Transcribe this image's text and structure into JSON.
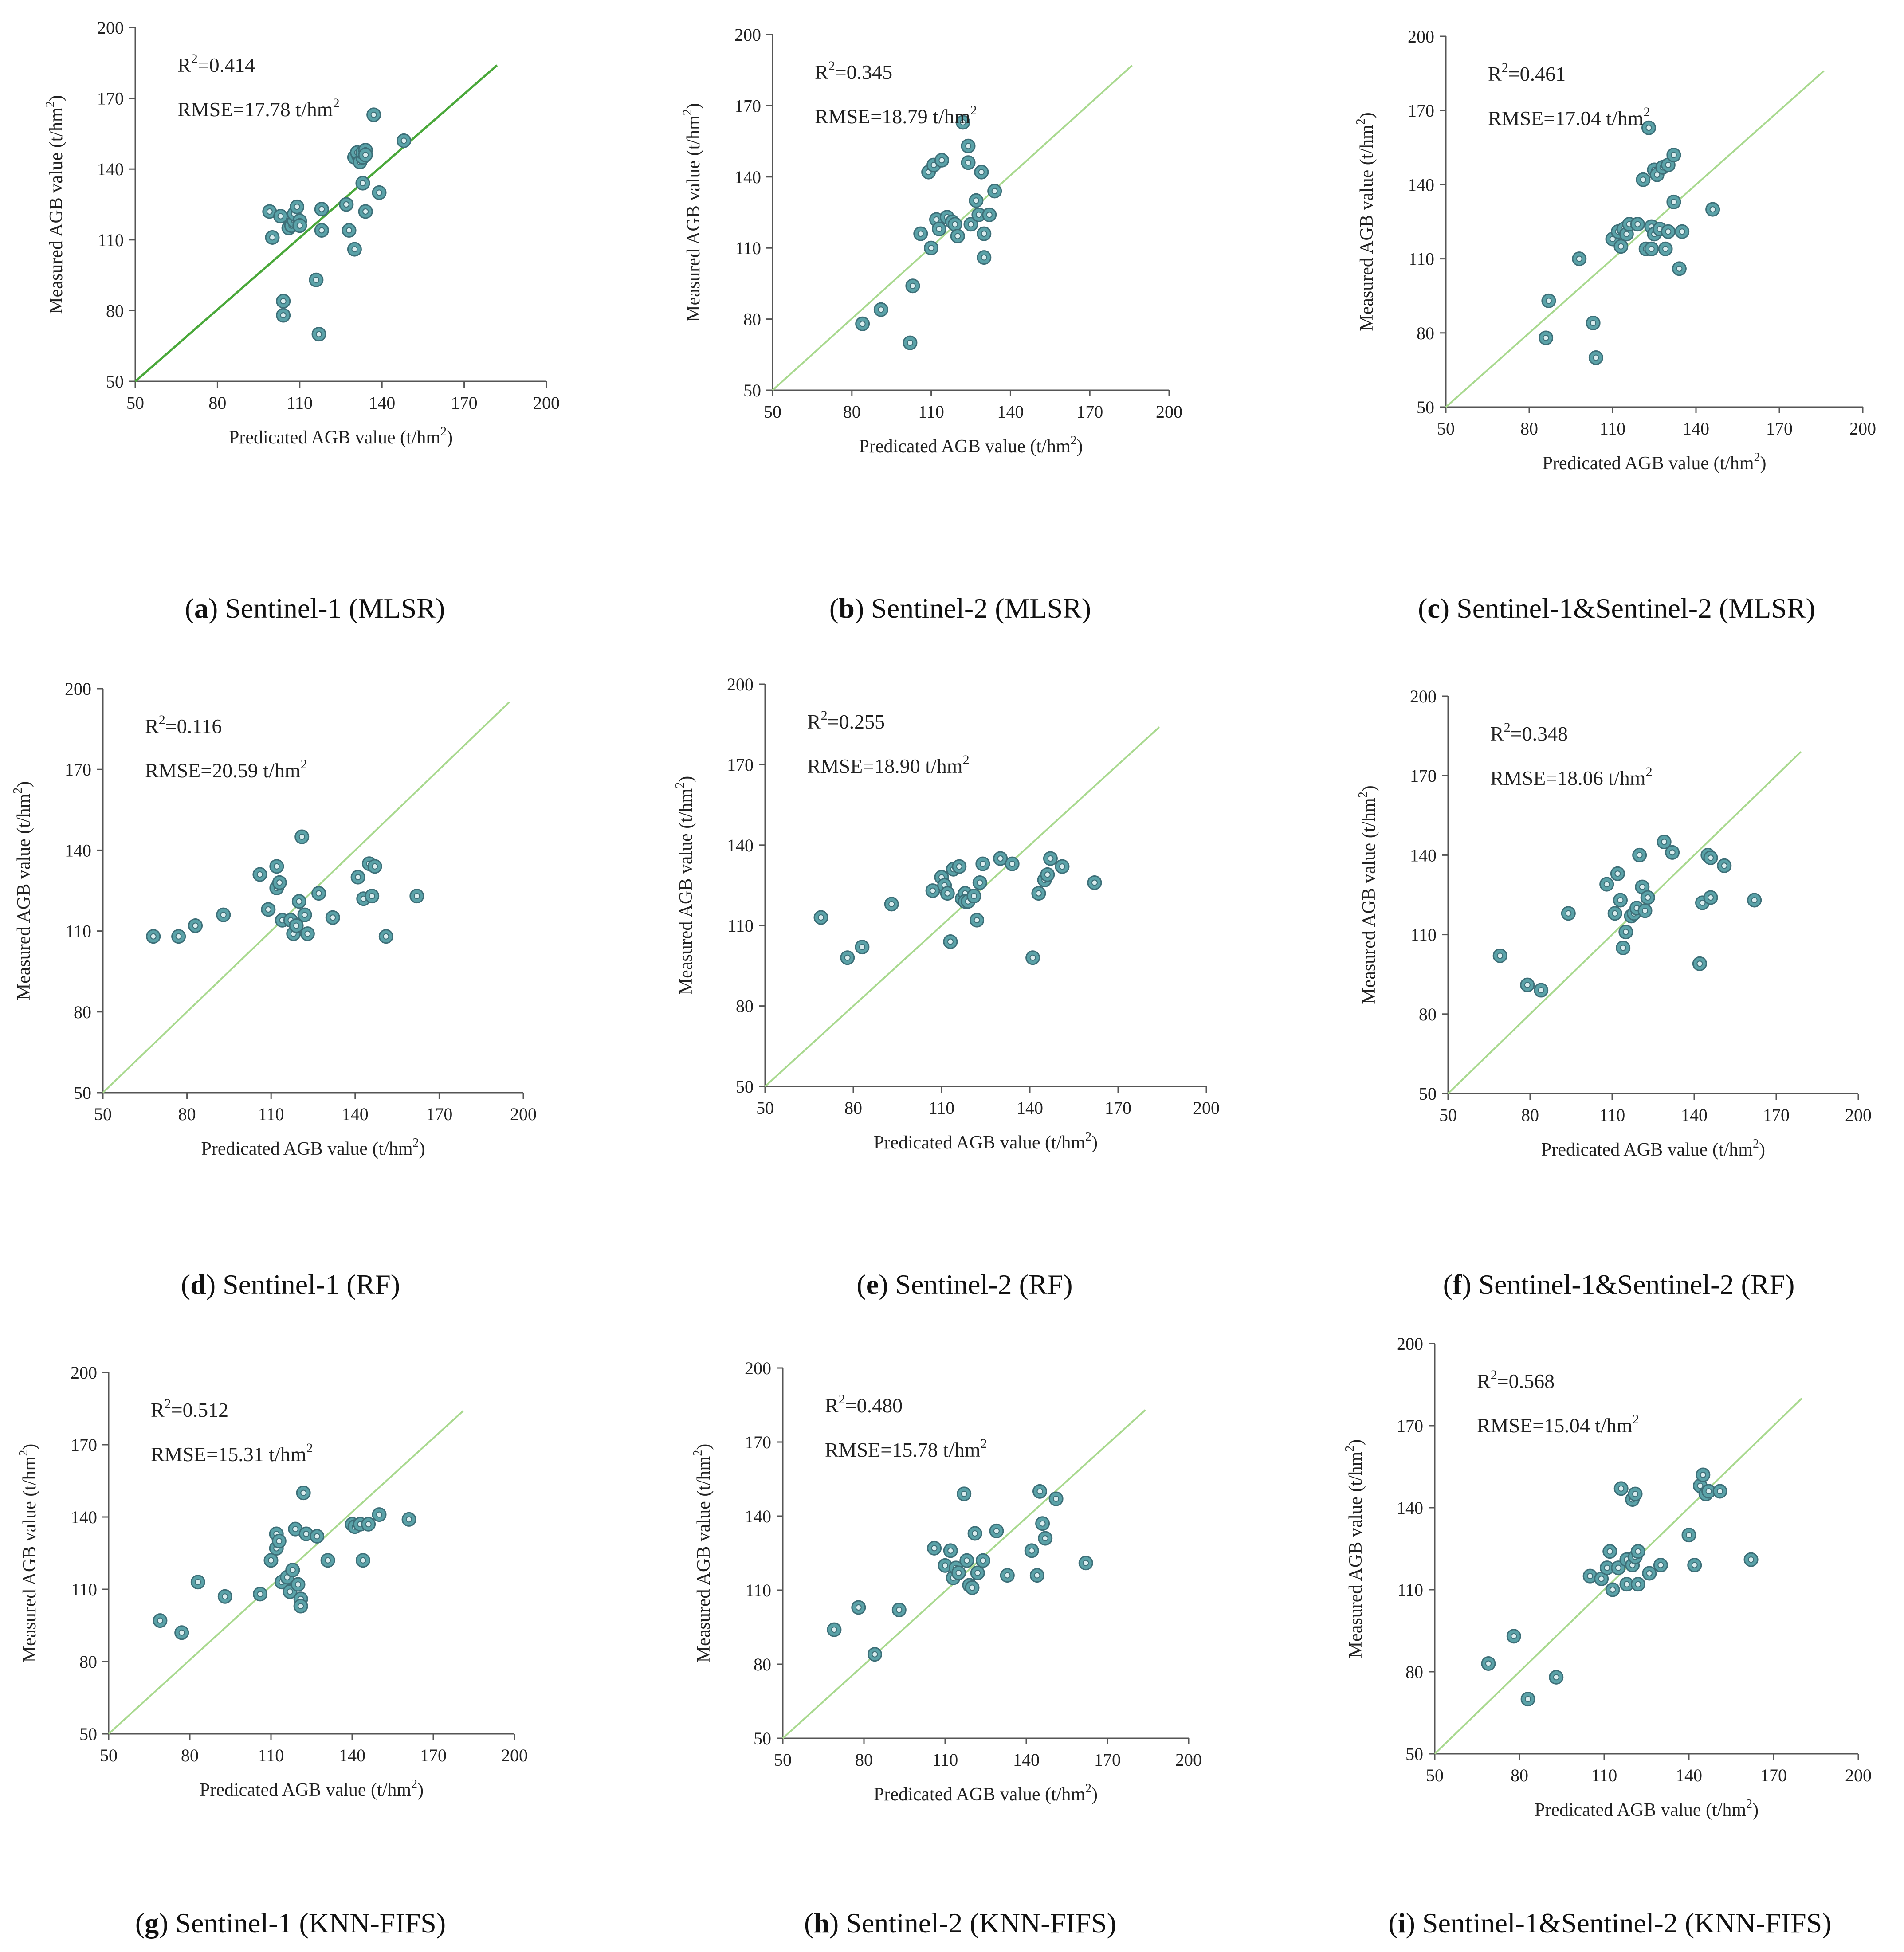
{
  "figure": {
    "point_color": "#5aa2a8",
    "point_stroke": "#3d6f78",
    "line_color": "#a9d98f",
    "line_color_dark": "#4aa83a"
  },
  "chart_data": [
    {
      "type": "scatter",
      "caption_letter": "a",
      "caption_text": " Sentinel-1 (MLSR)",
      "r2_label": "R",
      "r2_value": "=0.414",
      "rmse_label": "RMSE=17.78 t/hm",
      "xlabel_main": "Predicated AGB value (t/hm",
      "xlabel_end": ")",
      "ylabel_main": "Measured AGB value (t/hm",
      "ylabel_end": ")",
      "xlim": [
        50,
        200
      ],
      "ylim": [
        50,
        200
      ],
      "xticks": [
        50,
        80,
        110,
        140,
        170,
        200
      ],
      "yticks": [
        50,
        80,
        110,
        140,
        170,
        200
      ],
      "line_end": [
        182,
        184
      ],
      "line_style": "dark",
      "x": [
        99,
        100,
        103,
        104,
        104,
        106,
        107,
        108,
        108,
        109,
        110,
        110,
        116,
        117,
        118,
        118,
        127,
        128,
        130,
        130,
        131,
        132,
        133,
        133,
        133,
        134,
        134,
        134,
        137,
        139,
        148
      ],
      "y": [
        122,
        111,
        120,
        84,
        78,
        115,
        116,
        118,
        121,
        124,
        118,
        116,
        93,
        70,
        123,
        114,
        125,
        114,
        106,
        145,
        147,
        143,
        134,
        145,
        147,
        148,
        146,
        122,
        163,
        130,
        152
      ]
    },
    {
      "type": "scatter",
      "caption_letter": "b",
      "caption_text": " Sentinel-2 (MLSR)",
      "r2_label": "R",
      "r2_value": "=0.345",
      "rmse_label": "RMSE=18.79 t/hm",
      "xlabel_main": "Predicated AGB value (t/hm",
      "xlabel_end": ")",
      "ylabel_main": "Measured AGB value (t/hm",
      "ylabel_end": ")",
      "xlim": [
        50,
        200
      ],
      "ylim": [
        50,
        200
      ],
      "xticks": [
        50,
        80,
        110,
        140,
        170,
        200
      ],
      "yticks": [
        50,
        80,
        110,
        140,
        170,
        200
      ],
      "line_end": [
        186,
        187
      ],
      "line_style": "light",
      "x": [
        84,
        91,
        102,
        103,
        106,
        109,
        110,
        111,
        112,
        113,
        114,
        116,
        118,
        119,
        120,
        122,
        124,
        124,
        125,
        127,
        128,
        129,
        130,
        130,
        132,
        134
      ],
      "y": [
        78,
        84,
        70,
        94,
        116,
        142,
        110,
        145,
        122,
        118,
        147,
        123,
        121,
        120,
        115,
        163,
        153,
        146,
        120,
        130,
        124,
        142,
        116,
        106,
        124,
        134
      ]
    },
    {
      "type": "scatter",
      "caption_letter": "c",
      "caption_text": " Sentinel-1&Sentinel-2 (MLSR)",
      "r2_label": "R",
      "r2_value": "=0.461",
      "rmse_label": "RMSE=17.04 t/hm",
      "xlabel_main": "Predicated AGB value (t/hm",
      "xlabel_end": ")",
      "ylabel_main": "Measured AGB value (t/hm",
      "ylabel_end": ")",
      "xlim": [
        50,
        200
      ],
      "ylim": [
        50,
        200
      ],
      "xticks": [
        50,
        80,
        110,
        140,
        170,
        200
      ],
      "yticks": [
        50,
        80,
        110,
        140,
        170,
        200
      ],
      "line_end": [
        186,
        186
      ],
      "line_style": "light",
      "x": [
        86,
        87,
        98,
        103,
        104,
        110,
        112,
        113,
        114,
        115,
        116,
        119,
        121,
        122,
        123,
        124,
        124,
        125,
        125,
        126,
        127,
        128,
        129,
        130,
        130,
        132,
        132,
        134,
        135,
        146
      ],
      "y": [
        78,
        93,
        110,
        84,
        70,
        118,
        121,
        115,
        122,
        120,
        124,
        124,
        142,
        114,
        163,
        114,
        123,
        120,
        146,
        144,
        122,
        147,
        114,
        121,
        148,
        133,
        152,
        106,
        121,
        130
      ]
    },
    {
      "type": "scatter",
      "caption_letter": "d",
      "caption_text": " Sentinel-1 (RF)",
      "r2_label": "R",
      "r2_value": "=0.116",
      "rmse_label": "RMSE=20.59 t/hm",
      "xlabel_main": "Predicated AGB value (t/hm",
      "xlabel_end": ")",
      "ylabel_main": "Measured AGB value (t/hm",
      "ylabel_end": ")",
      "xlim": [
        50,
        200
      ],
      "ylim": [
        50,
        200
      ],
      "xticks": [
        50,
        80,
        110,
        140,
        170,
        200
      ],
      "yticks": [
        50,
        80,
        110,
        140,
        170,
        200
      ],
      "line_end": [
        195,
        195
      ],
      "line_style": "light",
      "x": [
        68,
        77,
        83,
        93,
        106,
        109,
        112,
        112,
        113,
        114,
        117,
        118,
        119,
        120,
        121,
        122,
        123,
        127,
        132,
        141,
        143,
        145,
        146,
        147,
        151,
        162
      ],
      "y": [
        108,
        108,
        112,
        116,
        131,
        118,
        134,
        126,
        128,
        114,
        114,
        109,
        112,
        121,
        145,
        116,
        109,
        124,
        115,
        130,
        122,
        135,
        123,
        134,
        108,
        123
      ]
    },
    {
      "type": "scatter",
      "caption_letter": "e",
      "caption_text": " Sentinel-2 (RF)",
      "r2_label": "R",
      "r2_value": "=0.255",
      "rmse_label": "RMSE=18.90 t/hm",
      "xlabel_main": "Predicated AGB value (t/hm",
      "xlabel_end": ")",
      "ylabel_main": "Measured AGB value (t/hm",
      "ylabel_end": ")",
      "xlim": [
        50,
        200
      ],
      "ylim": [
        50,
        200
      ],
      "xticks": [
        50,
        80,
        110,
        140,
        170,
        200
      ],
      "yticks": [
        50,
        80,
        110,
        140,
        170,
        200
      ],
      "line_end": [
        184,
        184
      ],
      "line_style": "light",
      "x": [
        69,
        78,
        83,
        93,
        107,
        110,
        111,
        112,
        113,
        114,
        116,
        117,
        118,
        118,
        119,
        121,
        122,
        123,
        124,
        130,
        134,
        141,
        143,
        145,
        146,
        147,
        151,
        162
      ],
      "y": [
        113,
        98,
        102,
        118,
        123,
        128,
        125,
        122,
        104,
        131,
        132,
        120,
        122,
        119,
        119,
        121,
        112,
        126,
        133,
        135,
        133,
        98,
        122,
        127,
        129,
        135,
        132,
        126
      ]
    },
    {
      "type": "scatter",
      "caption_letter": "f",
      "caption_text": " Sentinel-1&Sentinel-2 (RF)",
      "r2_label": "R",
      "r2_value": "=0.348",
      "rmse_label": "RMSE=18.06 t/hm",
      "xlabel_main": "Predicated AGB value (t/hm",
      "xlabel_end": ")",
      "ylabel_main": "Measured AGB value (t/hm",
      "ylabel_end": ")",
      "xlim": [
        50,
        200
      ],
      "ylim": [
        50,
        200
      ],
      "xticks": [
        50,
        80,
        110,
        140,
        170,
        200
      ],
      "yticks": [
        50,
        80,
        110,
        140,
        170,
        200
      ],
      "line_end": [
        179,
        179
      ],
      "line_style": "light",
      "x": [
        69,
        79,
        84,
        94,
        108,
        111,
        112,
        113,
        114,
        115,
        117,
        118,
        119,
        120,
        121,
        122,
        123,
        129,
        132,
        142,
        143,
        145,
        146,
        146,
        151,
        162
      ],
      "y": [
        102,
        91,
        89,
        118,
        129,
        118,
        133,
        123,
        105,
        111,
        117,
        118,
        120,
        140,
        128,
        119,
        124,
        145,
        141,
        99,
        122,
        140,
        124,
        139,
        136,
        123
      ]
    },
    {
      "type": "scatter",
      "caption_letter": "g",
      "caption_text": " Sentinel-1 (KNN-FIFS)",
      "r2_label": "R",
      "r2_value": "=0.512",
      "rmse_label": "RMSE=15.31 t/hm",
      "xlabel_main": "Predicated AGB value (t/hm",
      "xlabel_end": ")",
      "ylabel_main": "Measured AGB value (t/hm",
      "ylabel_end": ")",
      "xlim": [
        50,
        200
      ],
      "ylim": [
        50,
        200
      ],
      "xticks": [
        50,
        80,
        110,
        140,
        170,
        200
      ],
      "yticks": [
        50,
        80,
        110,
        140,
        170,
        200
      ],
      "line_end": [
        181,
        184
      ],
      "line_style": "light",
      "x": [
        69,
        77,
        83,
        93,
        106,
        110,
        112,
        112,
        113,
        114,
        116,
        117,
        118,
        119,
        120,
        121,
        121,
        122,
        123,
        127,
        131,
        140,
        141,
        143,
        144,
        146,
        150,
        161
      ],
      "y": [
        97,
        92,
        113,
        107,
        108,
        122,
        133,
        127,
        130,
        113,
        115,
        109,
        118,
        135,
        112,
        106,
        103,
        150,
        133,
        132,
        122,
        137,
        136,
        137,
        122,
        137,
        141,
        139
      ]
    },
    {
      "type": "scatter",
      "caption_letter": "h",
      "caption_text": " Sentinel-2 (KNN-FIFS)",
      "r2_label": "R",
      "r2_value": "=0.480",
      "rmse_label": "RMSE=15.78 t/hm",
      "xlabel_main": "Predicated AGB value (t/hm",
      "xlabel_end": ")",
      "ylabel_main": "Measured AGB value (t/hm",
      "ylabel_end": ")",
      "xlim": [
        50,
        200
      ],
      "ylim": [
        50,
        200
      ],
      "xticks": [
        50,
        80,
        110,
        140,
        170,
        200
      ],
      "yticks": [
        50,
        80,
        110,
        140,
        170,
        200
      ],
      "line_end": [
        184,
        183
      ],
      "line_style": "light",
      "x": [
        69,
        78,
        84,
        93,
        106,
        110,
        112,
        113,
        114,
        115,
        117,
        118,
        119,
        120,
        121,
        122,
        124,
        129,
        133,
        142,
        144,
        145,
        146,
        147,
        151,
        162
      ],
      "y": [
        94,
        103,
        84,
        102,
        127,
        120,
        126,
        115,
        119,
        117,
        149,
        122,
        112,
        111,
        133,
        117,
        122,
        134,
        116,
        126,
        116,
        150,
        137,
        131,
        147,
        121
      ]
    },
    {
      "type": "scatter",
      "caption_letter": "i",
      "caption_text": " Sentinel-1&Sentinel-2 (KNN-FIFS)",
      "r2_label": "R",
      "r2_value": "=0.568",
      "rmse_label": "RMSE=15.04 t/hm",
      "xlabel_main": "Predicated AGB value (t/hm",
      "xlabel_end": ")",
      "ylabel_main": "Measured AGB value (t/hm",
      "ylabel_end": ")",
      "xlim": [
        50,
        200
      ],
      "ylim": [
        50,
        200
      ],
      "xticks": [
        50,
        80,
        110,
        140,
        170,
        200
      ],
      "yticks": [
        50,
        80,
        110,
        140,
        170,
        200
      ],
      "line_end": [
        180,
        180
      ],
      "line_style": "light",
      "x": [
        69,
        78,
        83,
        93,
        105,
        109,
        111,
        112,
        113,
        115,
        116,
        118,
        118,
        120,
        120,
        121,
        121,
        122,
        122,
        126,
        130,
        140,
        142,
        144,
        145,
        146,
        147,
        151,
        162
      ],
      "y": [
        83,
        93,
        70,
        78,
        115,
        114,
        118,
        124,
        110,
        118,
        147,
        112,
        121,
        119,
        143,
        145,
        122,
        112,
        124,
        116,
        119,
        130,
        119,
        148,
        152,
        145,
        146,
        146,
        121
      ]
    }
  ]
}
